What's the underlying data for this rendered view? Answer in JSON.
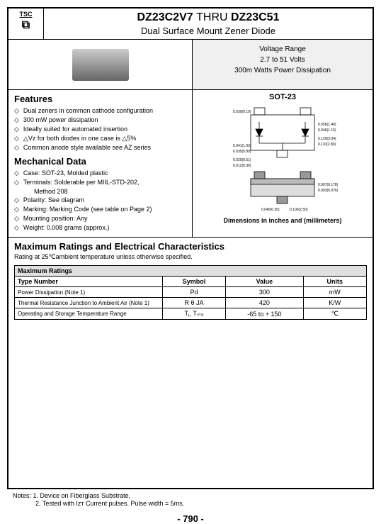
{
  "logo": {
    "brand": "TSC",
    "symbol": "⧉"
  },
  "title": {
    "part_start": "DZ23C2V7",
    "connector": "THRU",
    "part_end": "DZ23C51",
    "subtitle": "Dual Surface Mount Zener Diode"
  },
  "voltage_box": {
    "line1": "Voltage Range",
    "line2": "2.7 to 51 Volts",
    "line3": "300m Watts Power Dissipation"
  },
  "package_label": "SOT-23",
  "features": {
    "heading": "Features",
    "items": [
      "Dual zeners in common cathode configuration",
      "300 mW power dissipation",
      "Ideally suited for automated insertion",
      "△Vz for both diodes in one case is △5%",
      "Common anode style available see AZ series"
    ]
  },
  "mechanical": {
    "heading": "Mechanical Data",
    "items": [
      {
        "text": "Case: SOT-23, Molded plastic",
        "sub": null
      },
      {
        "text": "Terminals: Solderable per MIIL-STD-202,",
        "sub": "Method 208"
      },
      {
        "text": "Polarity: See diagram",
        "sub": null
      },
      {
        "text": "Marking: Marking Code (see table on Page 2)",
        "sub": null
      },
      {
        "text": "Mounting position: Any",
        "sub": null
      },
      {
        "text": "Weight: 0.008 grams (approx.)",
        "sub": null
      }
    ]
  },
  "dimensions_caption": "Dimensions in inches and (millimeters)",
  "ratings": {
    "heading": "Maximum Ratings and Electrical Characteristics",
    "subheading": "Rating at 25℃ambient temperature unless otherwise specified.",
    "table_title": "Maximum Ratings",
    "columns": [
      "Type Number",
      "Symbol",
      "Value",
      "Units"
    ],
    "rows": [
      {
        "label": "Power Dissipation (Note 1)",
        "symbol": "Pd",
        "value": "300",
        "units": "mW"
      },
      {
        "label": "Thermal Resistance Junction to Ambient Air (Note 1)",
        "symbol": "R θ JA",
        "value": "420",
        "units": "K/W"
      },
      {
        "label": "Operating and Storage Temperature Range",
        "symbol": "Tⱼ, Tₛₜ₉",
        "value": "-65 to + 150",
        "units": "℃"
      }
    ]
  },
  "notes": [
    "Notes: 1. Device on Fiberglass Substrate.",
    "2. Tested with Iᴢᴛ Current pulses. Pulse width = 5ms."
  ],
  "page_number": "- 790 -"
}
